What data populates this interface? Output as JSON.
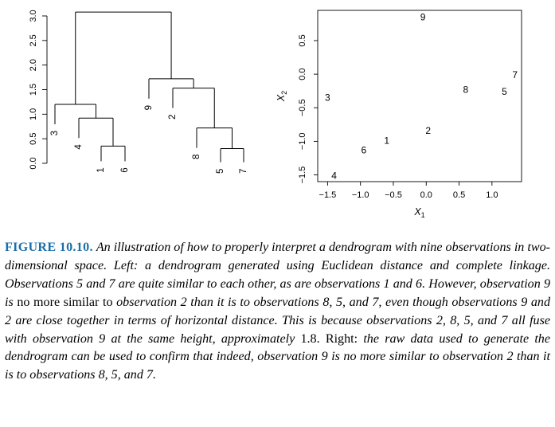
{
  "figure_label": "FIGURE 10.10.",
  "caption_segments": [
    {
      "style": "italic",
      "text": "An illustration of how to properly interpret a dendrogram with nine observations in two-dimensional space. Left: a dendrogram generated using Euclidean distance and complete linkage. Observations 5 and 7 are quite similar to each other, as are observations 1 and 6. However, observation 9 is"
    },
    {
      "style": "roman",
      "text": "no more similar to"
    },
    {
      "style": "italic",
      "text": "observation 2 than it is to observations 8, 5, and 7, even though observations 9 and 2 are close together in terms of horizontal distance. This is because observations 2, 8, 5, and 7 all fuse with observation 9 at the same height, approximately"
    },
    {
      "style": "roman",
      "text": "1.8. Right:"
    },
    {
      "style": "italic",
      "text": "the raw data used to generate the dendrogram can be used to confirm that indeed, observation 9 is no more similar to observation 2 than it is to observations 8, 5, and 7."
    }
  ],
  "chart_data": [
    {
      "type": "dendrogram",
      "ylim": [
        0,
        3.2
      ],
      "yticks": [
        0.0,
        0.5,
        1.0,
        1.5,
        2.0,
        2.5,
        3.0
      ],
      "ytick_labels": [
        "0.0",
        "0.5",
        "1.0",
        "1.5",
        "2.0",
        "2.5",
        "3.0"
      ],
      "leaf_order": [
        "3",
        "4",
        "1",
        "6",
        "9",
        "2",
        "8",
        "5",
        "7"
      ],
      "merges": [
        {
          "left": "1",
          "right": "6",
          "height": 0.35
        },
        {
          "left": "4",
          "right": "{1,6}",
          "height": 0.92
        },
        {
          "left": "3",
          "right": "{4,1,6}",
          "height": 1.2
        },
        {
          "left": "5",
          "right": "7",
          "height": 0.3
        },
        {
          "left": "8",
          "right": "{5,7}",
          "height": 0.72
        },
        {
          "left": "2",
          "right": "{8,5,7}",
          "height": 1.53
        },
        {
          "left": "9",
          "right": "{2,8,5,7}",
          "height": 1.72
        },
        {
          "left": "{3,4,1,6}",
          "right": "{9,2,8,5,7}",
          "height": 3.08
        }
      ]
    },
    {
      "type": "scatter",
      "xlabel": "X",
      "xlabel_sub": "1",
      "ylabel": "X",
      "ylabel_sub": "2",
      "xlim": [
        -1.65,
        1.45
      ],
      "ylim": [
        -1.6,
        0.95
      ],
      "xticks": [
        -1.5,
        -1.0,
        -0.5,
        0.0,
        0.5,
        1.0
      ],
      "xtick_labels": [
        "−1.5",
        "−1.0",
        "−0.5",
        "0.0",
        "0.5",
        "1.0"
      ],
      "yticks": [
        -1.5,
        -1.0,
        -0.5,
        0.0,
        0.5
      ],
      "ytick_labels": [
        "−1.5",
        "−1.0",
        "−0.5",
        "0.0",
        "0.5"
      ],
      "points": [
        {
          "label": "1",
          "x": -0.6,
          "y": -1.0
        },
        {
          "label": "2",
          "x": 0.03,
          "y": -0.85
        },
        {
          "label": "3",
          "x": -1.5,
          "y": -0.36
        },
        {
          "label": "4",
          "x": -1.4,
          "y": -1.52
        },
        {
          "label": "5",
          "x": 1.19,
          "y": -0.27
        },
        {
          "label": "6",
          "x": -0.95,
          "y": -1.14
        },
        {
          "label": "7",
          "x": 1.35,
          "y": -0.02
        },
        {
          "label": "8",
          "x": 0.6,
          "y": -0.24
        },
        {
          "label": "9",
          "x": -0.05,
          "y": 0.84
        }
      ]
    }
  ]
}
